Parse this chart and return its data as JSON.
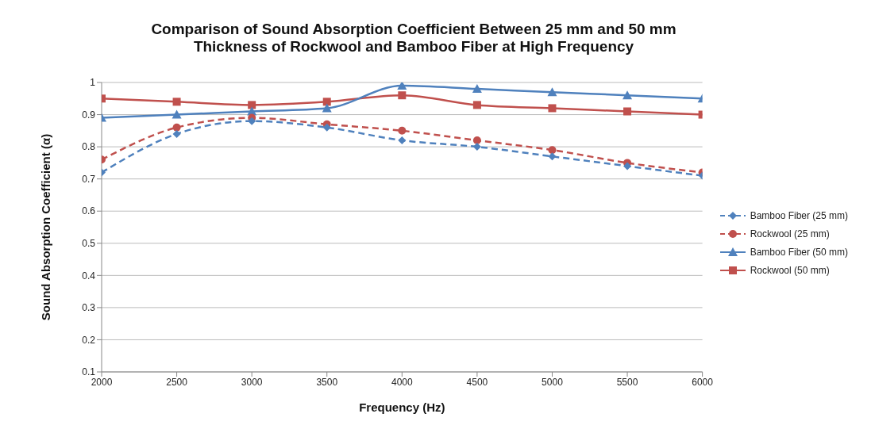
{
  "chart_data": {
    "type": "line",
    "title": "Comparison  of Sound Absorption Coefficient Between 25 mm and 50 mm\nThickness of Rockwool and Bamboo Fiber at High Frequency",
    "xlabel": "Frequency (Hz)",
    "ylabel": "Sound Absorption Coefficient (α)",
    "x": [
      2000,
      2500,
      3000,
      3500,
      4000,
      4500,
      5000,
      5500,
      6000
    ],
    "xlim": [
      2000,
      6000
    ],
    "xticks": [
      2000,
      2500,
      3000,
      3500,
      4000,
      4500,
      5000,
      5500,
      6000
    ],
    "ylim": [
      0.1,
      1
    ],
    "yticks": [
      0.1,
      0.2,
      0.3,
      0.4,
      0.5,
      0.6,
      0.7,
      0.8,
      0.9,
      1
    ],
    "grid": "y",
    "legend": "right",
    "series": [
      {
        "name": "Bamboo Fiber (25 mm)",
        "color": "#4f81bd",
        "marker": "diamond",
        "line_style": "dashed",
        "values": [
          0.72,
          0.84,
          0.88,
          0.86,
          0.82,
          0.8,
          0.77,
          0.74,
          0.71
        ]
      },
      {
        "name": "Rockwool (25 mm)",
        "color": "#c0504d",
        "marker": "circle",
        "line_style": "dashed",
        "values": [
          0.76,
          0.86,
          0.89,
          0.87,
          0.85,
          0.82,
          0.79,
          0.75,
          0.72
        ]
      },
      {
        "name": "Bamboo Fiber (50 mm)",
        "color": "#4f81bd",
        "marker": "triangle",
        "line_style": "solid",
        "values": [
          0.89,
          0.9,
          0.91,
          0.92,
          0.99,
          0.98,
          0.97,
          0.96,
          0.95
        ]
      },
      {
        "name": "Rockwool (50 mm)",
        "color": "#c0504d",
        "marker": "square",
        "line_style": "solid",
        "values": [
          0.95,
          0.94,
          0.93,
          0.94,
          0.96,
          0.93,
          0.92,
          0.91,
          0.9
        ]
      }
    ]
  }
}
